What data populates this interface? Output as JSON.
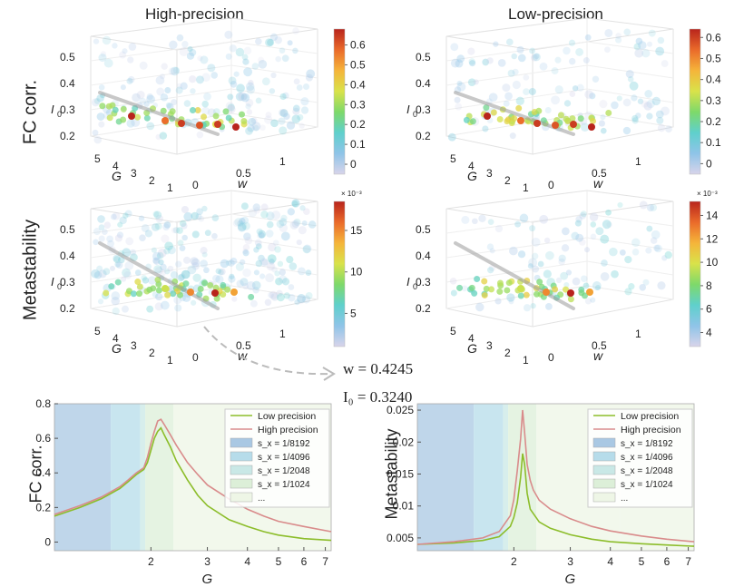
{
  "columns": [
    "High-precision",
    "Low-precision"
  ],
  "rows": [
    "FC corr.",
    "Metastability"
  ],
  "axis3d": {
    "I0_ticks": [
      "0.5",
      "0.4",
      "0.3",
      "0.2"
    ],
    "G_ticks": [
      "5",
      "4",
      "3",
      "2",
      "1"
    ],
    "w_ticks": [
      "0",
      "0.5",
      "1"
    ],
    "I0_label": "I",
    "I0_sub": "0",
    "G_label": "G",
    "w_label": "w"
  },
  "colors": {
    "colormap": [
      "#d8d4ea",
      "#8fc4e8",
      "#5fd0cc",
      "#7ed96a",
      "#d9e24a",
      "#f5b43a",
      "#ea6a2a",
      "#b8241c"
    ],
    "trend_line": "#9a9a9a",
    "low_line": "#8cbd2a",
    "high_line": "#d98b8b",
    "band_colors": [
      "#a9c8e3",
      "#b6dcea",
      "#c9e8e6",
      "#dcefd8",
      "#eef6e6"
    ]
  },
  "colorbars": [
    {
      "ticks": [
        "0.6",
        "0.5",
        "0.4",
        "0.3",
        "0.2",
        "0.1",
        "0"
      ],
      "min": -0.05,
      "max": 0.68,
      "exponent": ""
    },
    {
      "ticks": [
        "0.6",
        "0.5",
        "0.4",
        "0.3",
        "0.2",
        "0.1",
        "0"
      ],
      "min": -0.05,
      "max": 0.64,
      "exponent": ""
    },
    {
      "ticks": [
        "15",
        "10",
        "5"
      ],
      "min": 1,
      "max": 18.5,
      "exponent": "× 10⁻³"
    },
    {
      "ticks": [
        "14",
        "12",
        "10",
        "8",
        "6",
        "4"
      ],
      "min": 2.8,
      "max": 15.2,
      "exponent": "× 10⁻³"
    }
  ],
  "params": {
    "w_eq": "w = 0.4245",
    "I0_eq": "I₀ = 0.3240"
  },
  "chart_data": [
    {
      "type": "line",
      "ylabel": "FC corr.",
      "xlabel": "G",
      "xscale": "log",
      "xlim": [
        1.0,
        7.3
      ],
      "ylim": [
        -0.05,
        0.8
      ],
      "yticks": [
        0,
        0.2,
        0.4,
        0.6,
        0.8
      ],
      "xticks": [
        2,
        3,
        4,
        5,
        6,
        7
      ],
      "bands": [
        [
          1.0,
          1.5
        ],
        [
          1.5,
          1.85
        ],
        [
          1.85,
          1.92
        ],
        [
          1.92,
          2.35
        ],
        [
          2.35,
          7.3
        ]
      ],
      "x": [
        1.0,
        1.2,
        1.4,
        1.6,
        1.7,
        1.8,
        1.9,
        1.95,
        2.0,
        2.05,
        2.1,
        2.15,
        2.2,
        2.3,
        2.4,
        2.6,
        2.8,
        3.0,
        3.5,
        4.0,
        4.5,
        5.0,
        6.0,
        7.3
      ],
      "series": [
        {
          "name": "Low precision",
          "values": [
            0.15,
            0.2,
            0.25,
            0.31,
            0.35,
            0.39,
            0.42,
            0.46,
            0.53,
            0.6,
            0.64,
            0.66,
            0.62,
            0.55,
            0.47,
            0.36,
            0.27,
            0.21,
            0.13,
            0.09,
            0.06,
            0.04,
            0.02,
            0.01
          ]
        },
        {
          "name": "High precision",
          "values": [
            0.16,
            0.21,
            0.26,
            0.32,
            0.36,
            0.4,
            0.43,
            0.49,
            0.57,
            0.64,
            0.7,
            0.71,
            0.68,
            0.62,
            0.56,
            0.46,
            0.39,
            0.33,
            0.25,
            0.19,
            0.15,
            0.12,
            0.09,
            0.06
          ]
        }
      ],
      "legend": [
        "Low precision",
        "High precision",
        "s_x = 1/8192",
        "s_x = 1/4096",
        "s_x = 1/2048",
        "s_x = 1/1024",
        "..."
      ]
    },
    {
      "type": "line",
      "ylabel": "Metastability",
      "xlabel": "G",
      "xscale": "log",
      "xlim": [
        1.0,
        7.3
      ],
      "ylim": [
        0.003,
        0.026
      ],
      "yticks": [
        0.005,
        0.01,
        0.015,
        0.02,
        0.025
      ],
      "xticks": [
        2,
        3,
        4,
        5,
        6,
        7
      ],
      "bands": [
        [
          1.0,
          1.5
        ],
        [
          1.5,
          1.85
        ],
        [
          1.85,
          1.92
        ],
        [
          1.92,
          2.35
        ],
        [
          2.35,
          4.3
        ],
        [
          4.3,
          7.3
        ]
      ],
      "x": [
        1.0,
        1.3,
        1.6,
        1.8,
        1.95,
        2.0,
        2.05,
        2.1,
        2.13,
        2.16,
        2.2,
        2.25,
        2.3,
        2.4,
        2.6,
        3.0,
        3.5,
        4.0,
        5.0,
        6.0,
        7.3
      ],
      "series": [
        {
          "name": "Low precision",
          "values": [
            0.004,
            0.0042,
            0.0046,
            0.0052,
            0.0068,
            0.0082,
            0.0105,
            0.0145,
            0.0182,
            0.0165,
            0.012,
            0.0095,
            0.0088,
            0.0075,
            0.0065,
            0.0055,
            0.0048,
            0.0044,
            0.0041,
            0.0039,
            0.0037
          ]
        },
        {
          "name": "High precision",
          "values": [
            0.004,
            0.0044,
            0.005,
            0.006,
            0.0085,
            0.011,
            0.0155,
            0.0205,
            0.025,
            0.0215,
            0.0165,
            0.014,
            0.0125,
            0.0109,
            0.0095,
            0.008,
            0.0068,
            0.0061,
            0.0053,
            0.0048,
            0.0044
          ]
        }
      ],
      "legend": [
        "Low precision",
        "High precision",
        "s_x = 1/8192",
        "s_x = 1/4096",
        "s_x = 1/2048",
        "s_x = 1/1024",
        "..."
      ]
    }
  ]
}
